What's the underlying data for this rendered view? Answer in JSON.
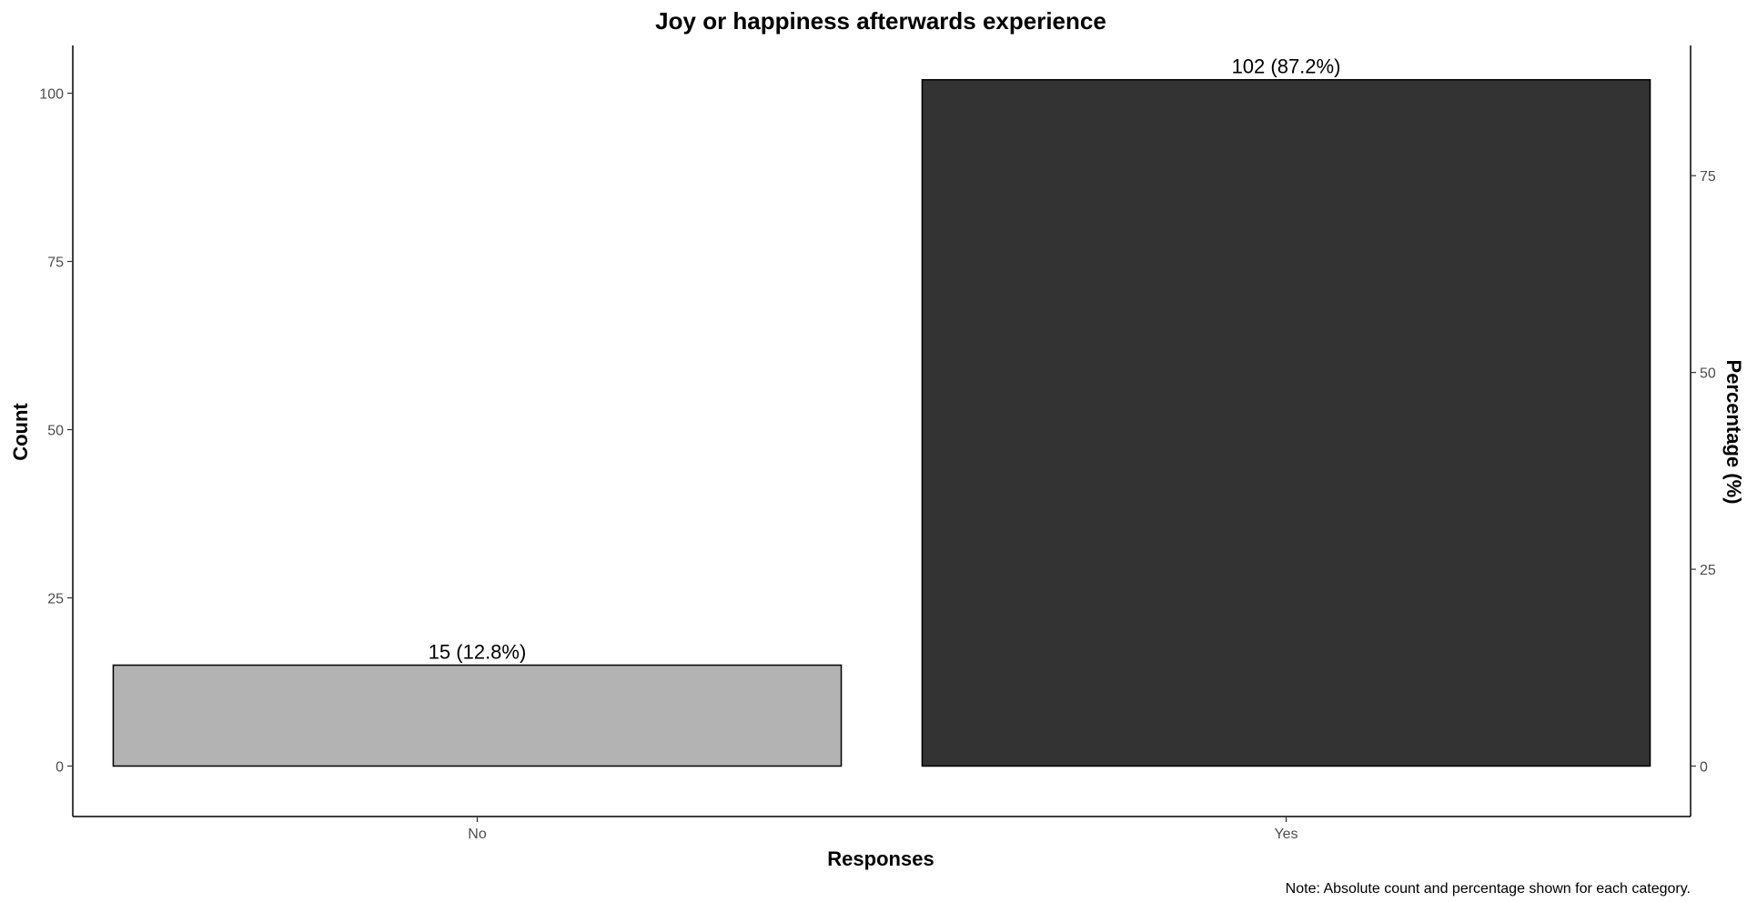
{
  "chart_data": {
    "type": "bar",
    "title": "Joy or happiness afterwards experience",
    "xlabel": "Responses",
    "ylabel": "Count",
    "y2label": "Percentage (%)",
    "categories": [
      "No",
      "Yes"
    ],
    "values": [
      15,
      102
    ],
    "percentages": [
      12.8,
      87.2
    ],
    "data_labels": [
      "15 (12.8%)",
      "102 (87.2%)"
    ],
    "colors": [
      "#b3b3b3",
      "#333333"
    ],
    "ylim": [
      -7.5,
      107.1
    ],
    "y_ticks": [
      0,
      25,
      50,
      75,
      100
    ],
    "y2_ticks": [
      0,
      25,
      50,
      75
    ],
    "grid": false,
    "note": "Note: Absolute count and percentage shown for each category."
  }
}
